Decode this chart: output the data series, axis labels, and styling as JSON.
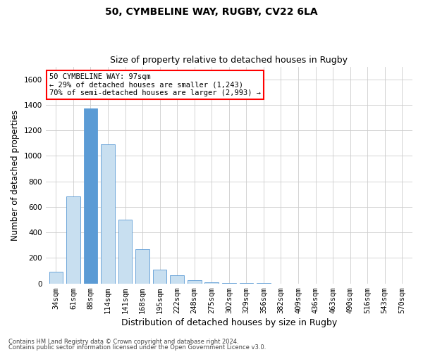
{
  "title_line1": "50, CYMBELINE WAY, RUGBY, CV22 6LA",
  "title_line2": "Size of property relative to detached houses in Rugby",
  "xlabel": "Distribution of detached houses by size in Rugby",
  "ylabel": "Number of detached properties",
  "categories": [
    "34sqm",
    "61sqm",
    "88sqm",
    "114sqm",
    "141sqm",
    "168sqm",
    "195sqm",
    "222sqm",
    "248sqm",
    "275sqm",
    "302sqm",
    "329sqm",
    "356sqm",
    "382sqm",
    "409sqm",
    "436sqm",
    "463sqm",
    "490sqm",
    "516sqm",
    "543sqm",
    "570sqm"
  ],
  "values": [
    90,
    680,
    1370,
    1090,
    500,
    270,
    110,
    65,
    25,
    10,
    5,
    3,
    2,
    1,
    1,
    1,
    1,
    0,
    0,
    0,
    0
  ],
  "highlight_index": 2,
  "bar_color_normal": "#c8dff0",
  "bar_color_highlight": "#5b9bd5",
  "bar_edge_color": "#5b9bd5",
  "annotation_line1": "50 CYMBELINE WAY: 97sqm",
  "annotation_line2": "← 29% of detached houses are smaller (1,243)",
  "annotation_line3": "70% of semi-detached houses are larger (2,993) →",
  "ylim": [
    0,
    1700
  ],
  "yticks": [
    0,
    200,
    400,
    600,
    800,
    1000,
    1200,
    1400,
    1600
  ],
  "footer_line1": "Contains HM Land Registry data © Crown copyright and database right 2024.",
  "footer_line2": "Contains public sector information licensed under the Open Government Licence v3.0.",
  "background_color": "#ffffff",
  "grid_color": "#cccccc",
  "title1_fontsize": 10,
  "title2_fontsize": 9,
  "ann_fontsize": 7.5,
  "ylabel_fontsize": 8.5,
  "xlabel_fontsize": 9,
  "tick_fontsize": 7.5,
  "footer_fontsize": 6.0
}
